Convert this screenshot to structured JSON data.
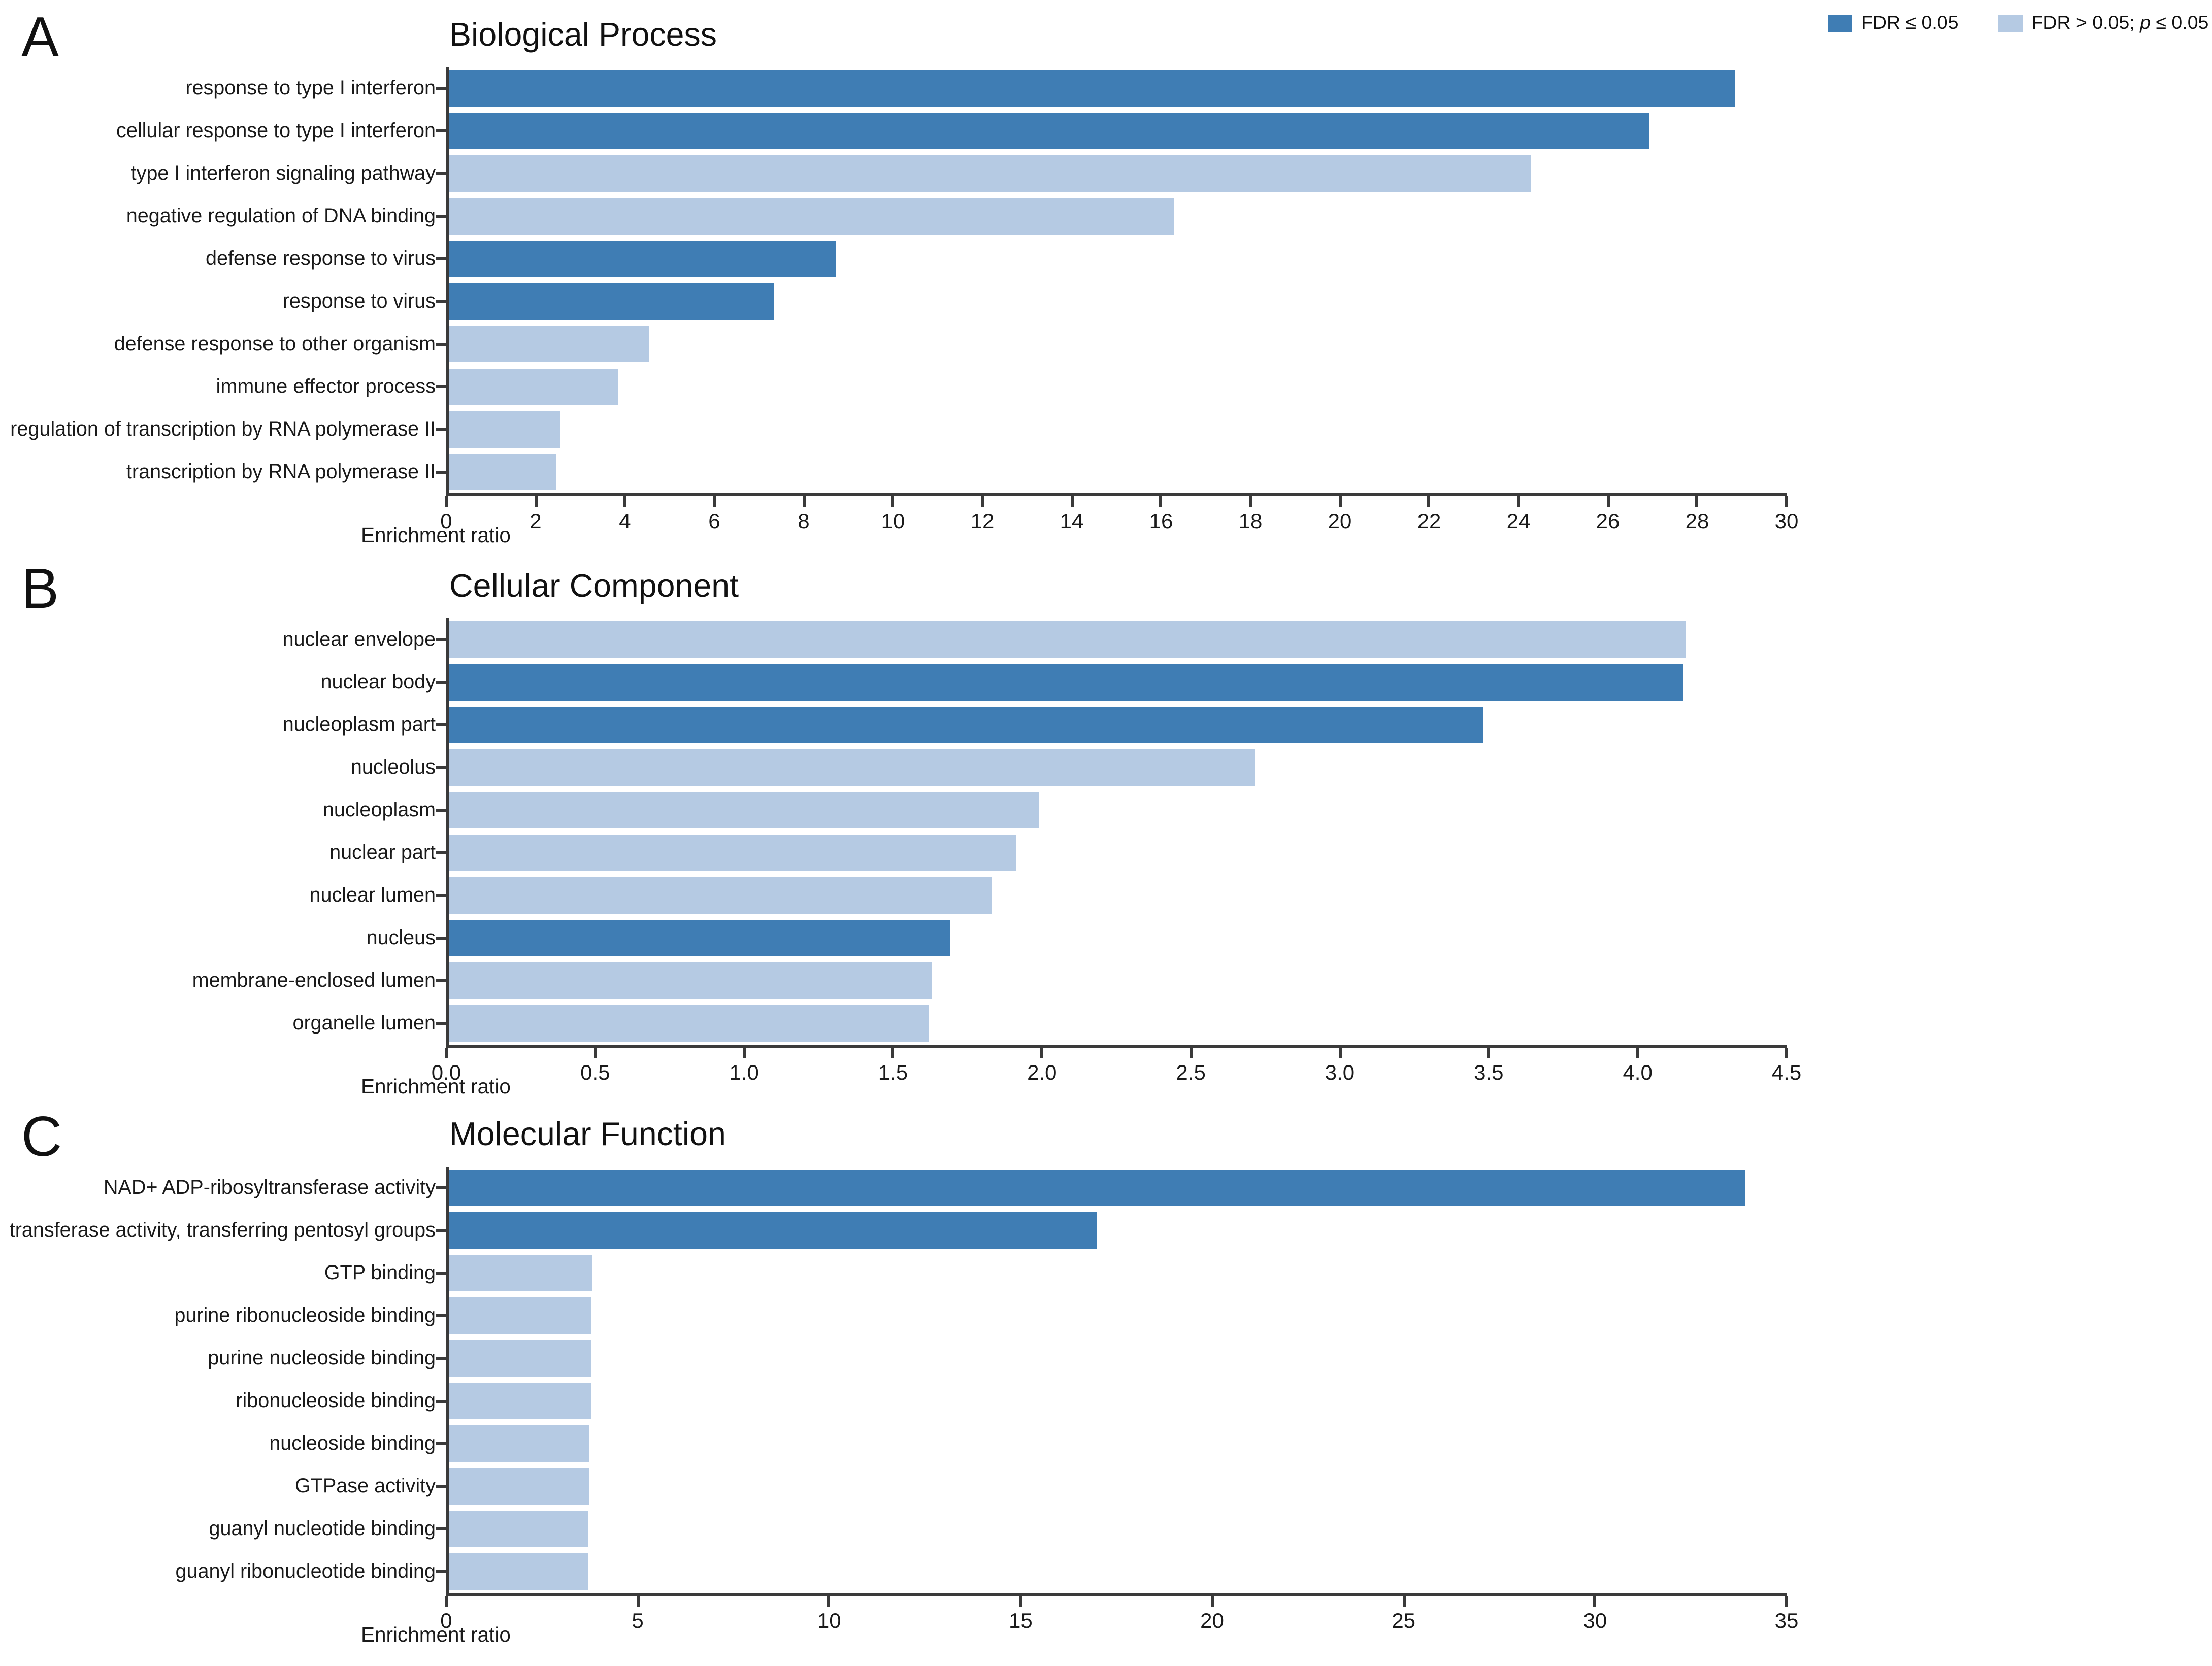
{
  "colors": {
    "significant": "#3F7DB4",
    "not_significant": "#B5CAE3",
    "axis": "#3A3A3A",
    "text": "#1A1A1A",
    "background": "#FFFFFF"
  },
  "legend": {
    "items": [
      {
        "label": "FDR ≤ 0.05",
        "significance": "significant"
      },
      {
        "label_parts": [
          "FDR > 0.05; ",
          "p",
          " ≤ 0.05"
        ],
        "significance": "not_significant"
      }
    ]
  },
  "chart_data": [
    {
      "panel_label": "A",
      "type": "bar",
      "orientation": "horizontal",
      "title": "Biological Process",
      "xlabel": "Enrichment ratio",
      "xlim": [
        0,
        30
      ],
      "xticks": [
        "0",
        "2",
        "4",
        "6",
        "8",
        "10",
        "12",
        "14",
        "16",
        "18",
        "20",
        "22",
        "24",
        "26",
        "28",
        "30"
      ],
      "categories": [
        "response to type I interferon",
        "cellular response to type I interferon",
        "type I interferon signaling pathway",
        "negative regulation of DNA binding",
        "defense response to virus",
        "response to virus",
        "defense response to other organism",
        "immune effector process",
        "regulation of transcription by RNA polymerase II",
        "transcription by RNA polymerase II"
      ],
      "values": [
        28.9,
        27.0,
        24.3,
        16.3,
        8.7,
        7.3,
        4.5,
        3.8,
        2.5,
        2.4
      ],
      "significant": [
        true,
        true,
        false,
        false,
        true,
        true,
        false,
        false,
        false,
        false
      ]
    },
    {
      "panel_label": "B",
      "type": "bar",
      "orientation": "horizontal",
      "title": "Cellular Component",
      "xlabel": "Enrichment ratio",
      "xlim": [
        0,
        4.5
      ],
      "xticks": [
        "0.0",
        "0.5",
        "1.0",
        "1.5",
        "2.0",
        "2.5",
        "3.0",
        "3.5",
        "4.0",
        "4.5"
      ],
      "categories": [
        "nuclear envelope",
        "nuclear body",
        "nucleoplasm part",
        "nucleolus",
        "nucleoplasm",
        "nuclear part",
        "nuclear lumen",
        "nucleus",
        "membrane-enclosed lumen",
        "organelle lumen"
      ],
      "values": [
        4.17,
        4.16,
        3.49,
        2.72,
        1.99,
        1.91,
        1.83,
        1.69,
        1.63,
        1.62
      ],
      "significant": [
        false,
        true,
        true,
        false,
        false,
        false,
        false,
        true,
        false,
        false
      ]
    },
    {
      "panel_label": "C",
      "type": "bar",
      "orientation": "horizontal",
      "title": "Molecular Function",
      "xlabel": "Enrichment ratio",
      "xlim": [
        0,
        35
      ],
      "xticks": [
        "0",
        "5",
        "10",
        "15",
        "20",
        "25",
        "30",
        "35"
      ],
      "categories": [
        "NAD+ ADP-ribosyltransferase activity",
        "transferase activity, transferring pentosyl groups",
        "GTP binding",
        "purine ribonucleoside binding",
        "purine nucleoside binding",
        "ribonucleoside binding",
        "nucleoside binding",
        "GTPase activity",
        "guanyl nucleotide binding",
        "guanyl ribonucleotide binding"
      ],
      "values": [
        34.0,
        17.0,
        3.75,
        3.72,
        3.71,
        3.7,
        3.69,
        3.66,
        3.64,
        3.63
      ],
      "significant": [
        true,
        true,
        false,
        false,
        false,
        false,
        false,
        false,
        false,
        false
      ]
    }
  ]
}
